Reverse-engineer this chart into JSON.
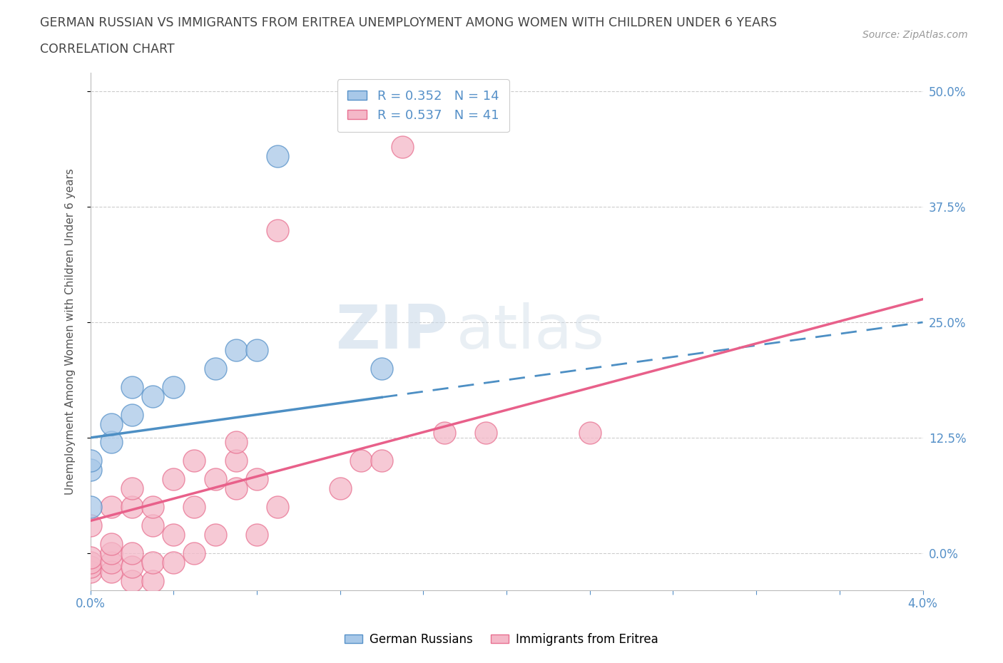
{
  "title_line1": "GERMAN RUSSIAN VS IMMIGRANTS FROM ERITREA UNEMPLOYMENT AMONG WOMEN WITH CHILDREN UNDER 6 YEARS",
  "title_line2": "CORRELATION CHART",
  "source": "Source: ZipAtlas.com",
  "ylabel": "Unemployment Among Women with Children Under 6 years",
  "xlim": [
    0.0,
    0.04
  ],
  "ylim": [
    -0.04,
    0.52
  ],
  "yticks": [
    0.0,
    0.125,
    0.25,
    0.375,
    0.5
  ],
  "ytick_labels": [
    "0.0%",
    "12.5%",
    "25.0%",
    "37.5%",
    "50.0%"
  ],
  "blue_color": "#a8c8e8",
  "pink_color": "#f4b8c8",
  "blue_line": "#4d8fc4",
  "pink_line": "#e8608a",
  "blue_edge": "#5590c8",
  "pink_edge": "#e87090",
  "watermark_zip": "ZIP",
  "watermark_atlas": "atlas",
  "gr_x": [
    0.0,
    0.0,
    0.0,
    0.001,
    0.001,
    0.002,
    0.002,
    0.003,
    0.004,
    0.006,
    0.007,
    0.008,
    0.009,
    0.014
  ],
  "gr_y": [
    0.05,
    0.09,
    0.1,
    0.12,
    0.14,
    0.15,
    0.18,
    0.17,
    0.18,
    0.2,
    0.22,
    0.22,
    0.43,
    0.2
  ],
  "er_x": [
    0.0,
    0.0,
    0.0,
    0.0,
    0.0,
    0.001,
    0.001,
    0.001,
    0.001,
    0.001,
    0.002,
    0.002,
    0.002,
    0.002,
    0.002,
    0.003,
    0.003,
    0.003,
    0.003,
    0.004,
    0.004,
    0.004,
    0.005,
    0.005,
    0.005,
    0.006,
    0.006,
    0.007,
    0.007,
    0.007,
    0.008,
    0.008,
    0.009,
    0.009,
    0.012,
    0.013,
    0.014,
    0.015,
    0.017,
    0.019,
    0.024
  ],
  "er_y": [
    -0.02,
    -0.015,
    -0.01,
    -0.005,
    0.03,
    -0.02,
    -0.01,
    0.0,
    0.01,
    0.05,
    -0.03,
    -0.015,
    0.0,
    0.05,
    0.07,
    -0.03,
    -0.01,
    0.03,
    0.05,
    -0.01,
    0.02,
    0.08,
    0.0,
    0.05,
    0.1,
    0.02,
    0.08,
    0.07,
    0.1,
    0.12,
    0.02,
    0.08,
    0.05,
    0.35,
    0.07,
    0.1,
    0.1,
    0.44,
    0.13,
    0.13,
    0.13
  ],
  "gr_line_x0": 0.0,
  "gr_line_x1": 0.04,
  "gr_line_y0": 0.125,
  "gr_line_y1": 0.25,
  "er_line_x0": 0.0,
  "er_line_x1": 0.04,
  "er_line_y0": 0.035,
  "er_line_y1": 0.275
}
